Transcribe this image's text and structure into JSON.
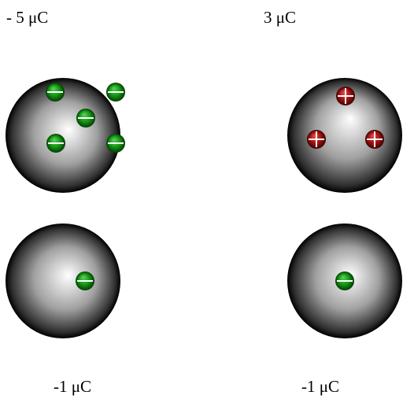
{
  "spheres": [
    {
      "label": "- 5 μC"
    },
    {
      "label": "3 μC"
    },
    {
      "label": "-1 μC"
    },
    {
      "label": "-1 μC"
    }
  ]
}
